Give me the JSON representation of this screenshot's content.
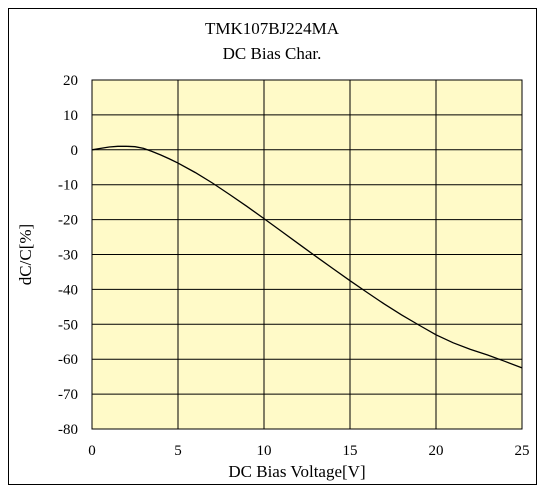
{
  "chart_data": {
    "type": "line",
    "title": "TMK107BJ224MA",
    "subtitle": "DC Bias Char.",
    "xlabel": "DC Bias Voltage[V]",
    "ylabel": "dC/C[%]",
    "xlim": [
      0,
      25
    ],
    "ylim": [
      -80,
      20
    ],
    "xticks": [
      0,
      5,
      10,
      15,
      20,
      25
    ],
    "yticks": [
      20,
      10,
      0,
      -10,
      -20,
      -30,
      -40,
      -50,
      -60,
      -70,
      -80
    ],
    "grid": true,
    "legend": "none",
    "colors": {
      "plot_background": "#FFFAC8",
      "line": "#000000",
      "grid": "#000000"
    },
    "series": [
      {
        "x": [
          0,
          0.5,
          1,
          1.5,
          2,
          2.5,
          3,
          3.5,
          4,
          4.5,
          5,
          6,
          7,
          8,
          9,
          10,
          11,
          12,
          13,
          14,
          15,
          16,
          17,
          18,
          19,
          20,
          21,
          22,
          23,
          24,
          25
        ],
        "y": [
          0,
          0.4,
          0.8,
          1.0,
          1.0,
          0.9,
          0.4,
          -0.5,
          -1.5,
          -2.6,
          -3.8,
          -6.5,
          -9.5,
          -12.8,
          -16.2,
          -19.7,
          -23.3,
          -26.9,
          -30.5,
          -34.0,
          -37.5,
          -40.9,
          -44.2,
          -47.3,
          -50.2,
          -53.0,
          -55.3,
          -57.2,
          -58.8,
          -60.6,
          -62.5
        ]
      }
    ]
  }
}
